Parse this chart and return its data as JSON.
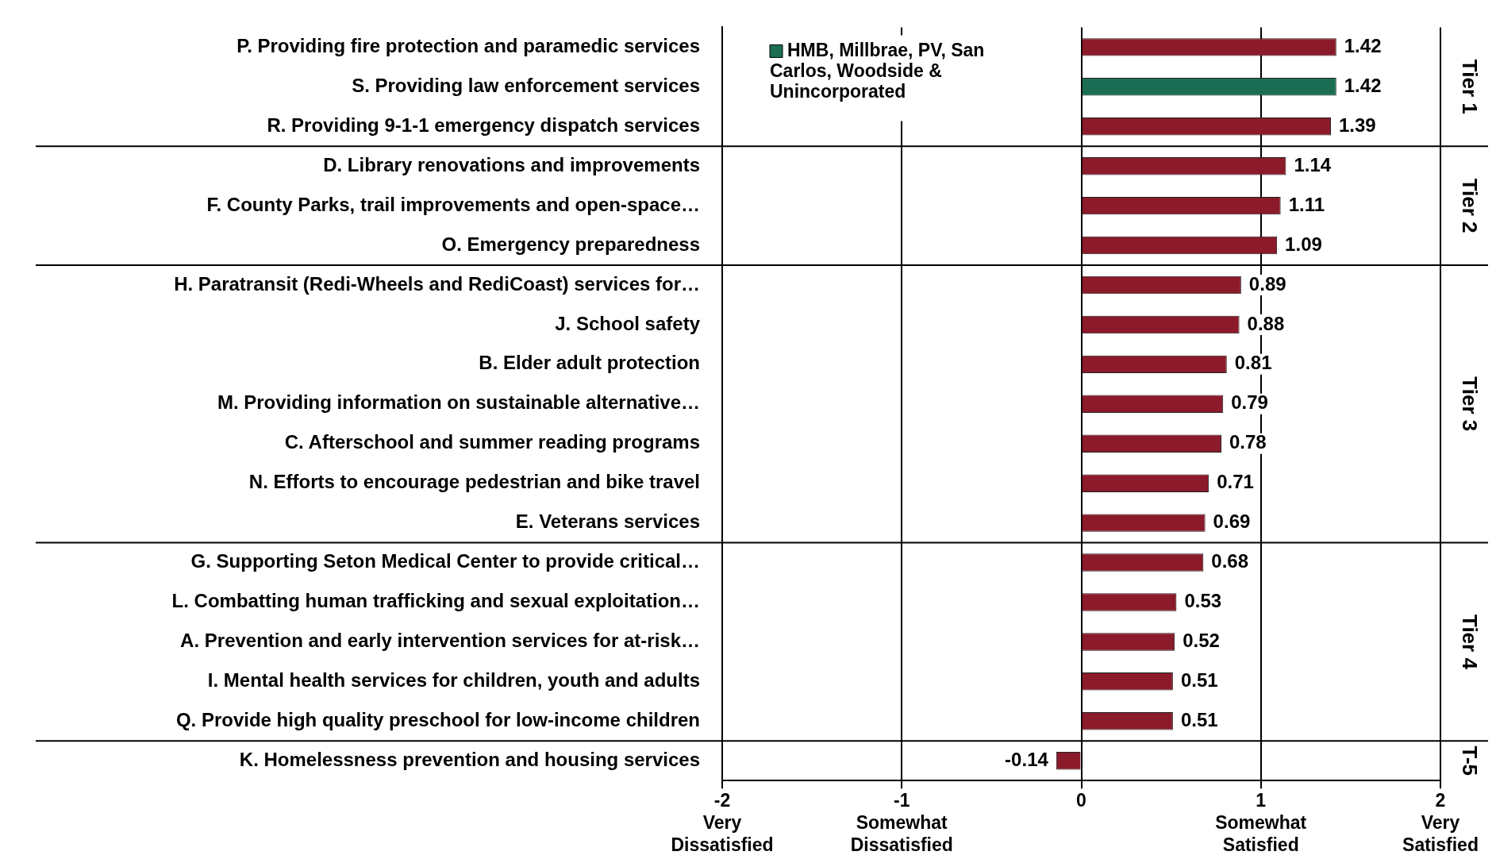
{
  "chart_data": {
    "type": "bar",
    "orientation": "horizontal",
    "categories": [
      "P. Providing fire protection and paramedic services",
      "S. Providing law enforcement services",
      "R. Providing 9-1-1 emergency dispatch services",
      "D. Library renovations and improvements",
      "F. County Parks, trail improvements and open-space…",
      "O. Emergency preparedness",
      "H. Paratransit (Redi-Wheels and RediCoast) services for…",
      "J. School safety",
      "B. Elder adult protection",
      "M. Providing information on sustainable alternative…",
      "C. Afterschool and summer reading programs",
      "N. Efforts to encourage pedestrian and bike travel",
      "E. Veterans services",
      "G. Supporting Seton Medical Center to provide critical…",
      "L. Combatting human trafficking and sexual exploitation…",
      "A. Prevention and early intervention services for at-risk…",
      "I. Mental health services for children, youth and adults",
      "Q. Provide high quality preschool for low-income children",
      "K. Homelessness prevention and housing services"
    ],
    "series": [
      {
        "color": "#8b1a2a",
        "values": [
          1.42,
          null,
          1.39,
          1.14,
          1.11,
          1.09,
          0.89,
          0.88,
          0.81,
          0.79,
          0.78,
          0.71,
          0.69,
          0.68,
          0.53,
          0.52,
          0.51,
          0.51,
          -0.14
        ]
      },
      {
        "name": "HMB, Millbrae, PV, San Carlos, Woodside & Unincorporated",
        "color": "#1b6e54",
        "values": [
          null,
          1.42,
          null,
          null,
          null,
          null,
          null,
          null,
          null,
          null,
          null,
          null,
          null,
          null,
          null,
          null,
          null,
          null,
          null
        ]
      }
    ],
    "xlim": [
      -2,
      2
    ],
    "xticks": [
      {
        "value": -2,
        "label": "-2\nVery\nDissatisfied"
      },
      {
        "value": -1,
        "label": "-1\nSomewhat\nDissatisfied"
      },
      0,
      {
        "value": 1,
        "label": "1\nSomewhat\nSatisfied"
      },
      {
        "value": 2,
        "label": "2\nVery\nSatisfied"
      }
    ],
    "grid": "x",
    "data_labels": true,
    "legend": "top left",
    "annotations": [
      "Tier 1",
      "Tier 2",
      "Tier 3",
      "Tier 4",
      "T-5"
    ]
  }
}
